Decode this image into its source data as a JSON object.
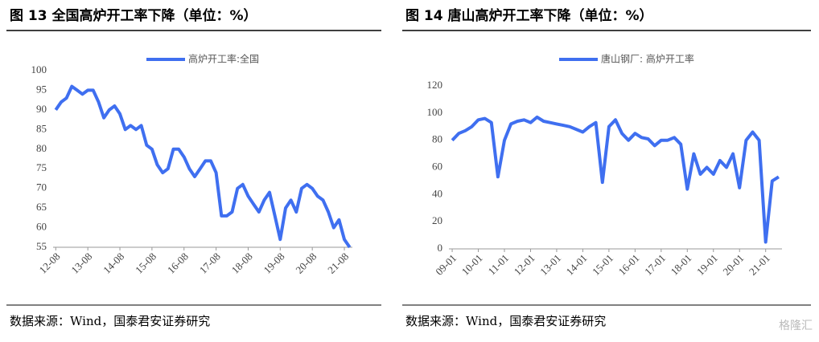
{
  "chart_data": [
    {
      "type": "line",
      "title": "图 13  全国高炉开工率下降（单位：%）",
      "source": "数据来源：Wind，国泰君安证券研究",
      "categories": [
        "12-08",
        null,
        null,
        null,
        null,
        null,
        "13-08",
        null,
        null,
        null,
        null,
        null,
        "14-08",
        null,
        null,
        null,
        null,
        null,
        "15-08",
        null,
        null,
        null,
        null,
        null,
        "16-08",
        null,
        null,
        null,
        null,
        null,
        "17-08",
        null,
        null,
        null,
        null,
        null,
        "18-08",
        null,
        null,
        null,
        null,
        null,
        "19-08",
        null,
        null,
        null,
        null,
        null,
        "20-08",
        null,
        null,
        null,
        null,
        null,
        "21-08",
        null
      ],
      "series": [
        {
          "name": "高炉开工率:全国",
          "color": "#3f6ff0",
          "values": [
            90,
            92,
            93,
            96,
            95,
            94,
            95,
            95,
            92,
            88,
            90,
            91,
            89,
            85,
            86,
            85,
            86,
            81,
            80,
            76,
            74,
            75,
            80,
            80,
            78,
            75,
            73,
            75,
            77,
            77,
            74,
            63,
            63,
            64,
            70,
            71,
            68,
            66,
            64,
            67,
            69,
            63,
            57,
            65,
            67,
            64,
            70,
            71,
            70,
            68,
            67,
            64,
            60,
            62,
            57,
            55
          ]
        }
      ],
      "ylim": [
        55,
        100
      ],
      "yticks": [
        55,
        60,
        65,
        70,
        75,
        80,
        85,
        90,
        95,
        100
      ],
      "grid": false,
      "legend": "top"
    },
    {
      "type": "line",
      "title": "图 14  唐山高炉开工率下降（单位：%）",
      "source": "数据来源：Wind，国泰君安证券研究",
      "categories": [
        "09-01",
        null,
        null,
        null,
        "10-01",
        null,
        null,
        null,
        "11-01",
        null,
        null,
        null,
        "12-01",
        null,
        null,
        null,
        "13-01",
        null,
        null,
        null,
        "14-01",
        null,
        null,
        null,
        "15-01",
        null,
        null,
        null,
        "16-01",
        null,
        null,
        null,
        "17-01",
        null,
        null,
        null,
        "18-01",
        null,
        null,
        null,
        "19-01",
        null,
        null,
        null,
        "20-01",
        null,
        null,
        null,
        "21-01",
        null,
        null
      ],
      "series": [
        {
          "name": "唐山钢厂: 高炉开工率",
          "color": "#3f6ff0",
          "values": [
            80,
            85,
            87,
            90,
            95,
            96,
            93,
            53,
            80,
            92,
            94,
            95,
            93,
            97,
            94,
            93,
            92,
            91,
            90,
            88,
            86,
            90,
            93,
            49,
            90,
            95,
            85,
            80,
            85,
            82,
            81,
            76,
            80,
            80,
            82,
            77,
            44,
            70,
            55,
            60,
            55,
            65,
            60,
            70,
            45,
            80,
            86,
            80,
            5,
            50,
            53
          ]
        }
      ],
      "ylim": [
        0,
        120
      ],
      "yticks": [
        0,
        20,
        40,
        60,
        80,
        100,
        120
      ],
      "grid": false,
      "legend": "top"
    }
  ],
  "watermark": "格隆汇"
}
